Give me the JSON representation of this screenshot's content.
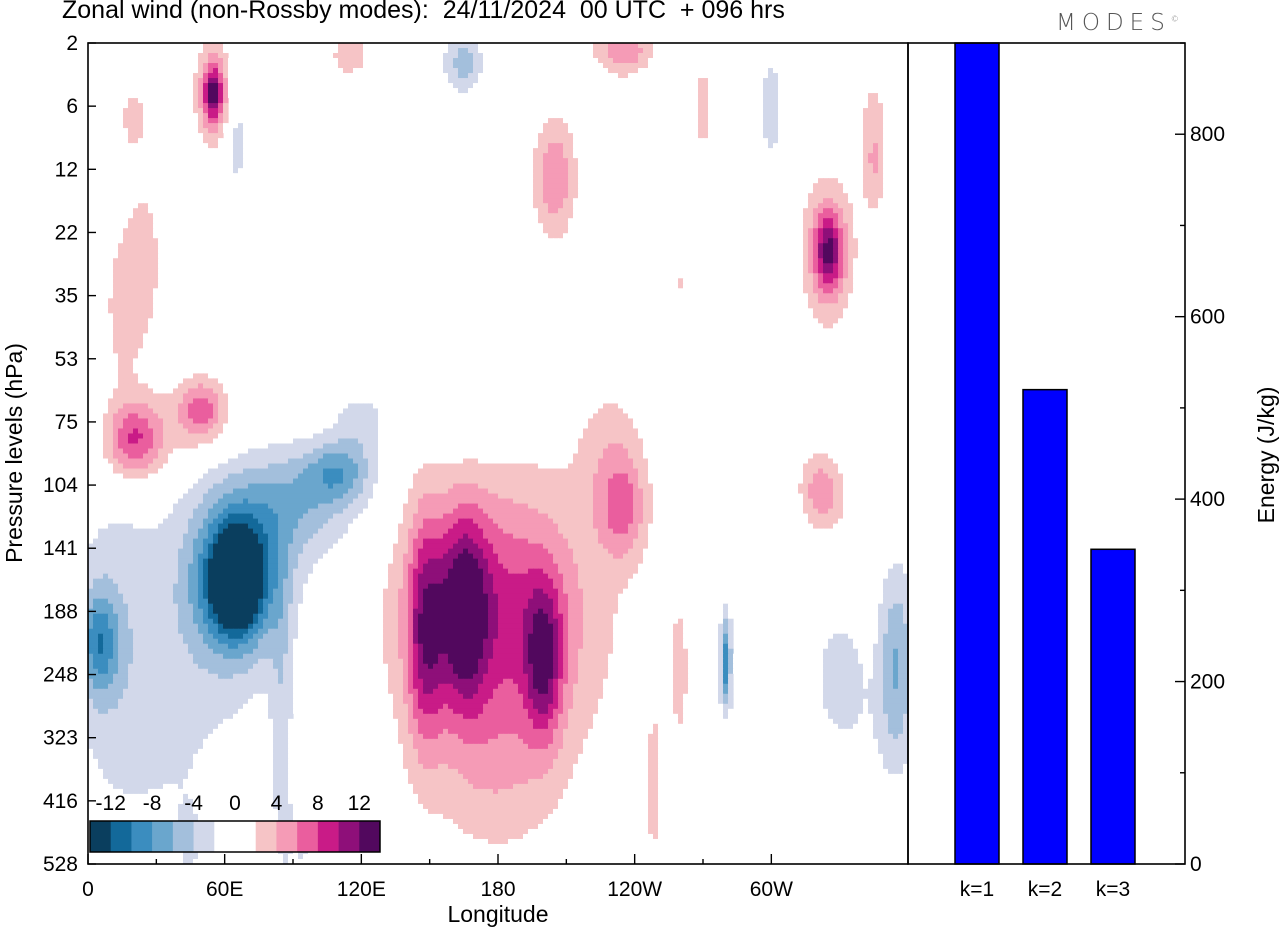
{
  "title": "Zonal wind (non-Rossby modes):  24/11/2024  00 UTC  + 096 hrs",
  "logo_text": "MODES",
  "logo_mark": "©",
  "chart_data": [
    {
      "type": "heatmap",
      "xlabel": "Longitude",
      "ylabel": "Pressure levels (hPa)",
      "x_ticks": [
        "0",
        "60E",
        "120E",
        "180",
        "120W",
        "60W"
      ],
      "y_ticks": [
        "2",
        "6",
        "12",
        "22",
        "35",
        "53",
        "75",
        "104",
        "141",
        "188",
        "248",
        "323",
        "416",
        "528"
      ],
      "colorbar": {
        "labels": [
          "-12",
          "-8",
          "-4",
          "0",
          "4",
          "8",
          "12"
        ],
        "colors": [
          "#0a3e5e",
          "#13699a",
          "#3b8dbf",
          "#6aa6cd",
          "#a3bfdc",
          "#d2d8ea",
          "#ffffff",
          "#ffffff",
          "#f6c4c6",
          "#f59bb6",
          "#ea5e9e",
          "#c91b87",
          "#8e0f79",
          "#52085e"
        ]
      },
      "blobs": [
        {
          "lon": 20,
          "lev": 1.2,
          "rx": 6,
          "ry": 0.5,
          "v": 3
        },
        {
          "lon": 55,
          "lev": 0.8,
          "rx": 8,
          "ry": 0.8,
          "v": 6
        },
        {
          "lon": 55,
          "lev": 0.8,
          "rx": 4,
          "ry": 0.4,
          "v": 8
        },
        {
          "lon": 65,
          "lev": 1.5,
          "rx": 5,
          "ry": 1.0,
          "v": -3
        },
        {
          "lon": 115,
          "lev": 0.2,
          "rx": 8,
          "ry": 0.3,
          "v": 4
        },
        {
          "lon": 145,
          "lev": 0.6,
          "rx": 10,
          "ry": 0.6,
          "v": -2
        },
        {
          "lon": 165,
          "lev": 0.3,
          "rx": 8,
          "ry": 0.5,
          "v": -5
        },
        {
          "lon": 235,
          "lev": 0.1,
          "rx": 12,
          "ry": 0.4,
          "v": 6
        },
        {
          "lon": 270,
          "lev": 1.0,
          "rx": 5,
          "ry": 0.8,
          "v": 3
        },
        {
          "lon": 300,
          "lev": 1.0,
          "rx": 6,
          "ry": 1.0,
          "v": -3
        },
        {
          "lon": 345,
          "lev": 1.2,
          "rx": 8,
          "ry": 1.0,
          "v": 2
        },
        {
          "lon": 345,
          "lev": 2.0,
          "rx": 5,
          "ry": 0.8,
          "v": 3
        },
        {
          "lon": 205,
          "lev": 2.1,
          "rx": 8,
          "ry": 0.8,
          "v": 4
        },
        {
          "lon": 205,
          "lev": 2.2,
          "rx": 12,
          "ry": 1.2,
          "v": 2
        },
        {
          "lon": 325,
          "lev": 3.3,
          "rx": 12,
          "ry": 1.2,
          "v": 5
        },
        {
          "lon": 325,
          "lev": 3.3,
          "rx": 6,
          "ry": 0.6,
          "v": 8
        },
        {
          "lon": 25,
          "lev": 3.5,
          "rx": 8,
          "ry": 1.4,
          "v": 3
        },
        {
          "lon": 95,
          "lev": 4.1,
          "rx": 12,
          "ry": 0.9,
          "v": 2
        },
        {
          "lon": 75,
          "lev": 4.5,
          "rx": 25,
          "ry": 0.6,
          "v": -2
        },
        {
          "lon": 150,
          "lev": 4.3,
          "rx": 15,
          "ry": 0.6,
          "v": -2
        },
        {
          "lon": 120,
          "lev": 6.0,
          "rx": 12,
          "ry": 0.5,
          "v": -3
        },
        {
          "lon": 260,
          "lev": 3.8,
          "rx": 12,
          "ry": 0.8,
          "v": 2
        },
        {
          "lon": 230,
          "lev": 6.6,
          "rx": 15,
          "ry": 1.2,
          "v": 3
        },
        {
          "lon": 15,
          "lev": 4.2,
          "rx": 8,
          "ry": 1.3,
          "v": 3
        },
        {
          "lon": 40,
          "lev": 6.2,
          "rx": 30,
          "ry": 0.8,
          "v": 3
        },
        {
          "lon": 20,
          "lev": 6.3,
          "rx": 12,
          "ry": 0.6,
          "v": 7
        },
        {
          "lon": 50,
          "lev": 5.8,
          "rx": 10,
          "ry": 0.5,
          "v": 6
        },
        {
          "lon": 50,
          "lev": 6.5,
          "rx": 20,
          "ry": 0.7,
          "v": -1
        },
        {
          "lon": 165,
          "lev": 6.0,
          "rx": 22,
          "ry": 0.6,
          "v": -2
        },
        {
          "lon": 325,
          "lev": 7.2,
          "rx": 10,
          "ry": 0.6,
          "v": 3
        },
        {
          "lon": 10,
          "lev": 9.5,
          "rx": 20,
          "ry": 2.5,
          "v": -3
        },
        {
          "lon": 5,
          "lev": 9.5,
          "rx": 8,
          "ry": 0.8,
          "v": -7
        },
        {
          "lon": 65,
          "lev": 8.5,
          "rx": 25,
          "ry": 1.6,
          "v": -5
        },
        {
          "lon": 65,
          "lev": 8.5,
          "rx": 16,
          "ry": 1.0,
          "v": -10
        },
        {
          "lon": 65,
          "lev": 8.5,
          "rx": 8,
          "ry": 0.6,
          "v": -13
        },
        {
          "lon": 90,
          "lev": 7.3,
          "rx": 30,
          "ry": 0.9,
          "v": -5
        },
        {
          "lon": 110,
          "lev": 6.8,
          "rx": 15,
          "ry": 0.5,
          "v": -6
        },
        {
          "lon": 40,
          "lev": 10.5,
          "rx": 30,
          "ry": 3.2,
          "v": -2
        },
        {
          "lon": 85,
          "lev": 10.8,
          "rx": 5,
          "ry": 2.5,
          "v": -3
        },
        {
          "lon": 180,
          "lev": 9.5,
          "rx": 48,
          "ry": 3.0,
          "v": 3
        },
        {
          "lon": 180,
          "lev": 9.0,
          "rx": 38,
          "ry": 1.8,
          "v": 6
        },
        {
          "lon": 148,
          "lev": 9.3,
          "rx": 8,
          "ry": 1.8,
          "v": 8
        },
        {
          "lon": 165,
          "lev": 9.0,
          "rx": 10,
          "ry": 1.5,
          "v": 9
        },
        {
          "lon": 200,
          "lev": 9.8,
          "rx": 8,
          "ry": 1.2,
          "v": 8
        },
        {
          "lon": 180,
          "lev": 11.5,
          "rx": 25,
          "ry": 1.3,
          "v": 2
        },
        {
          "lon": 235,
          "lev": 7.4,
          "rx": 10,
          "ry": 0.8,
          "v": 5
        },
        {
          "lon": 260,
          "lev": 10.0,
          "rx": 8,
          "ry": 2.5,
          "v": 2
        },
        {
          "lon": 248,
          "lev": 12.0,
          "rx": 5,
          "ry": 2.0,
          "v": 2
        },
        {
          "lon": 280,
          "lev": 9.8,
          "rx": 5,
          "ry": 1.5,
          "v": -2
        },
        {
          "lon": 280,
          "lev": 9.8,
          "rx": 2,
          "ry": 0.6,
          "v": -8
        },
        {
          "lon": 330,
          "lev": 10.0,
          "rx": 12,
          "ry": 1.0,
          "v": -3
        },
        {
          "lon": 355,
          "lev": 9.8,
          "rx": 8,
          "ry": 1.5,
          "v": -6
        },
        {
          "lon": 345,
          "lev": 11.0,
          "rx": 20,
          "ry": 1.0,
          "v": -1
        },
        {
          "lon": 305,
          "lev": 10.0,
          "rx": 8,
          "ry": 1.8,
          "v": 2
        },
        {
          "lon": 330,
          "lev": 12.0,
          "rx": 3,
          "ry": 0.6,
          "v": 2
        },
        {
          "lon": 320,
          "lev": 7.0,
          "rx": 8,
          "ry": 0.6,
          "v": 3
        },
        {
          "lon": 95,
          "lev": 12.8,
          "rx": 8,
          "ry": 1.0,
          "v": -2
        },
        {
          "lon": 45,
          "lev": 12.8,
          "rx": 8,
          "ry": 0.8,
          "v": -1
        }
      ]
    },
    {
      "type": "bar",
      "categories": [
        "k=1",
        "k=2",
        "k=3"
      ],
      "values": [
        900,
        520,
        345
      ],
      "ylabel": "Energy (J/kg)",
      "y_ticks": [
        "0",
        "200",
        "400",
        "600",
        "800"
      ],
      "ylim": [
        0,
        900
      ],
      "bar_color": "#0000ff"
    }
  ]
}
